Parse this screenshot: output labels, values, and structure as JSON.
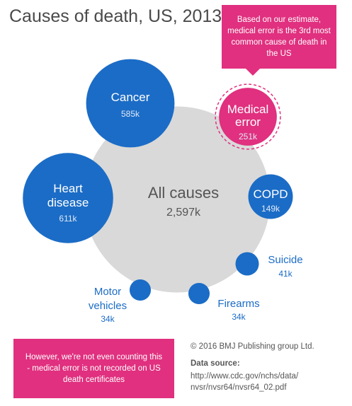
{
  "title": "Causes of death, US, 2013",
  "callout_top": "Based on our estimate, medical error is the 3rd most common cause of death in the US",
  "callout_bottom": "However, we're not even counting this - medical error is not recorded on US death certificates",
  "copyright": "© 2016 BMJ Publishing group Ltd.",
  "source_label": "Data source:",
  "source_text": "http://www.cdc.gov/nchs/data/ nvsr/nvsr64/nvsr64_02.pdf",
  "colors": {
    "all_causes": "#d9d9d9",
    "cause": "#1b6cc6",
    "highlight": "#e0307f",
    "label_outside": "#1b6cc6",
    "label_inside": "#ffffff",
    "label_all": "#555555"
  },
  "chart_data": {
    "type": "bubble",
    "title": "Causes of death, US, 2013",
    "unit": "k",
    "total": {
      "label": "All causes",
      "value": 2597,
      "value_label": "2,597k"
    },
    "causes": [
      {
        "label": "Cancer",
        "value": 585,
        "value_label": "585k",
        "highlight": false
      },
      {
        "label": "Medical error",
        "value": 251,
        "value_label": "251k",
        "highlight": true
      },
      {
        "label": "Heart disease",
        "value": 611,
        "value_label": "611k",
        "highlight": false
      },
      {
        "label": "COPD",
        "value": 149,
        "value_label": "149k",
        "highlight": false
      },
      {
        "label": "Suicide",
        "value": 41,
        "value_label": "41k",
        "highlight": false
      },
      {
        "label": "Motor vehicles",
        "value": 34,
        "value_label": "34k",
        "highlight": false
      },
      {
        "label": "Firearms",
        "value": 34,
        "value_label": "34k",
        "highlight": false
      }
    ]
  }
}
